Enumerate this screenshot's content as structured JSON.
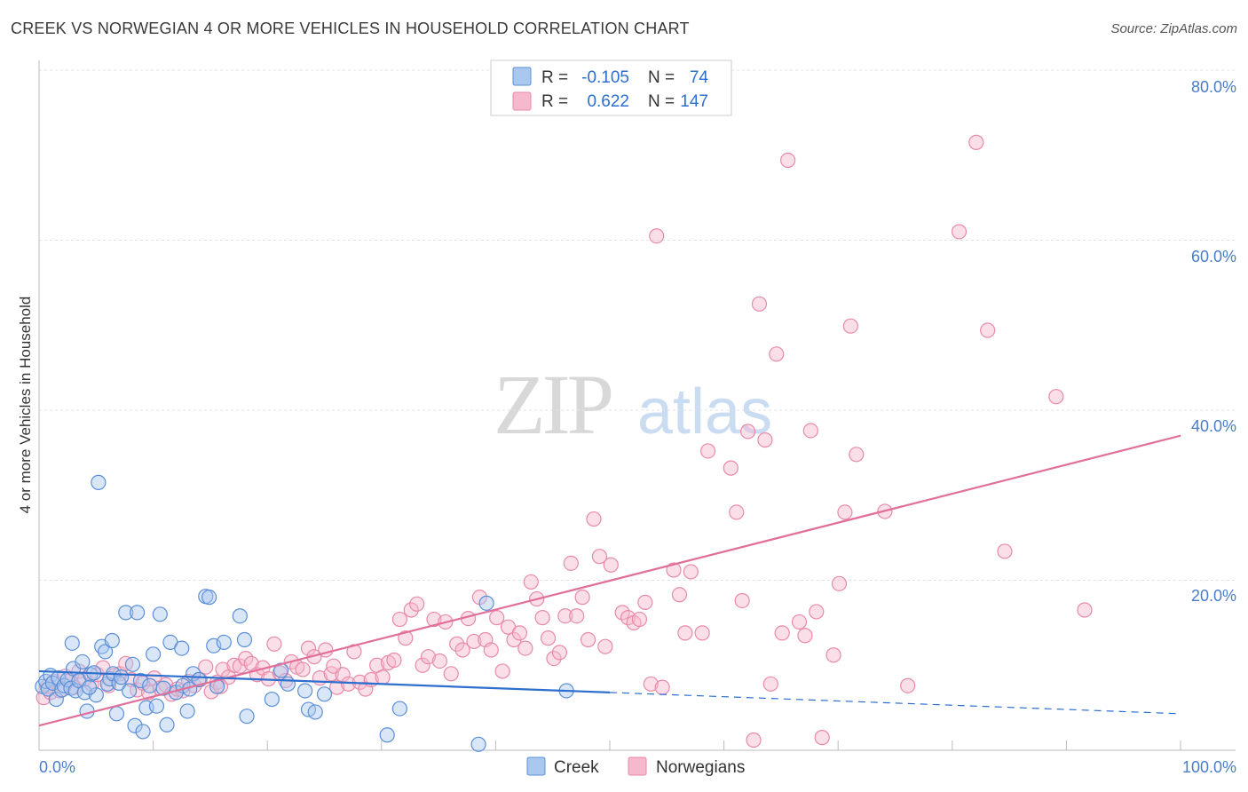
{
  "chart_data": {
    "type": "scatter",
    "title": "CREEK VS NORWEGIAN 4 OR MORE VEHICLES IN HOUSEHOLD CORRELATION CHART",
    "source": "Source: ZipAtlas.com",
    "xlabel": "",
    "ylabel": "4 or more Vehicles in Household",
    "xlim": [
      0,
      100
    ],
    "ylim": [
      0,
      80
    ],
    "x_tick_labels": [
      "0.0%",
      "100.0%"
    ],
    "y_tick_labels": [
      "80.0%",
      "60.0%",
      "40.0%",
      "20.0%"
    ],
    "y_tick_values": [
      80,
      60,
      40,
      20
    ],
    "watermark": {
      "zip": "ZIP",
      "atlas": "atlas"
    },
    "legend": {
      "rows": [
        {
          "r_label": "R =",
          "r_value": "-0.105",
          "n_label": "N =",
          "n_value": "74"
        },
        {
          "r_label": "R =",
          "r_value": "0.622",
          "n_label": "N =",
          "n_value": "147"
        }
      ]
    },
    "colors": {
      "creek_fill": "#a9c8f0",
      "creek_stroke": "#5b8fd6",
      "creek_line": "#2c6fcf",
      "norwegian_fill": "#f6b8cc",
      "norwegian_stroke": "#e88aa8",
      "norwegian_line": "#e0709a",
      "tick_text": "#4a7cc9",
      "legend_value": "#2c6fcf"
    },
    "series": [
      {
        "name": "Creek",
        "trend": {
          "x": [
            0,
            50
          ],
          "y": [
            9.3,
            6.8
          ],
          "dashed_to": [
            100,
            4.3
          ]
        },
        "points": [
          [
            0.3,
            7.5
          ],
          [
            0.6,
            8.1
          ],
          [
            0.8,
            7.2
          ],
          [
            1.0,
            8.8
          ],
          [
            1.2,
            7.9
          ],
          [
            1.5,
            6.0
          ],
          [
            1.7,
            8.5
          ],
          [
            2.0,
            7.1
          ],
          [
            2.2,
            7.6
          ],
          [
            2.5,
            8.3
          ],
          [
            2.8,
            7.3
          ],
          [
            3.0,
            9.6
          ],
          [
            3.2,
            7.0
          ],
          [
            3.5,
            8.2
          ],
          [
            3.8,
            10.4
          ],
          [
            4.0,
            6.8
          ],
          [
            4.2,
            4.6
          ],
          [
            4.5,
            8.9
          ],
          [
            4.8,
            9.1
          ],
          [
            5.0,
            6.5
          ],
          [
            5.2,
            31.5
          ],
          [
            5.5,
            12.2
          ],
          [
            5.8,
            11.6
          ],
          [
            6.0,
            7.8
          ],
          [
            6.2,
            8.4
          ],
          [
            6.5,
            9.0
          ],
          [
            6.8,
            4.3
          ],
          [
            7.0,
            7.9
          ],
          [
            7.2,
            8.6
          ],
          [
            7.6,
            16.2
          ],
          [
            7.9,
            7.0
          ],
          [
            8.2,
            10.1
          ],
          [
            8.4,
            2.9
          ],
          [
            8.6,
            16.2
          ],
          [
            8.9,
            8.2
          ],
          [
            9.1,
            2.2
          ],
          [
            9.4,
            5.0
          ],
          [
            9.7,
            7.6
          ],
          [
            10.0,
            11.3
          ],
          [
            10.3,
            5.2
          ],
          [
            10.6,
            16.0
          ],
          [
            10.9,
            7.3
          ],
          [
            11.2,
            3.0
          ],
          [
            11.5,
            12.7
          ],
          [
            12.0,
            6.8
          ],
          [
            12.6,
            7.6
          ],
          [
            13.0,
            4.6
          ],
          [
            13.5,
            9.0
          ],
          [
            14.0,
            8.3
          ],
          [
            14.6,
            18.1
          ],
          [
            14.9,
            18.0
          ],
          [
            15.3,
            12.3
          ],
          [
            15.6,
            7.5
          ],
          [
            16.2,
            12.7
          ],
          [
            17.6,
            15.8
          ],
          [
            18.0,
            13.0
          ],
          [
            18.2,
            4.0
          ],
          [
            20.4,
            6.0
          ],
          [
            21.2,
            9.4
          ],
          [
            21.8,
            7.8
          ],
          [
            23.3,
            7.0
          ],
          [
            23.6,
            4.8
          ],
          [
            24.2,
            4.5
          ],
          [
            25.0,
            6.6
          ],
          [
            30.5,
            1.8
          ],
          [
            31.6,
            4.9
          ],
          [
            38.5,
            0.7
          ],
          [
            39.2,
            17.3
          ],
          [
            46.2,
            7.0
          ],
          [
            12.5,
            12.0
          ],
          [
            13.2,
            7.2
          ],
          [
            2.9,
            12.6
          ],
          [
            4.4,
            7.4
          ],
          [
            6.4,
            12.9
          ]
        ]
      },
      {
        "name": "Norwegians",
        "trend": {
          "x": [
            0,
            100
          ],
          "y": [
            2.9,
            37.0
          ]
        },
        "points": [
          [
            0.4,
            6.2
          ],
          [
            0.7,
            7.5
          ],
          [
            1.0,
            6.8
          ],
          [
            1.3,
            8.1
          ],
          [
            1.8,
            7.0
          ],
          [
            2.3,
            8.7
          ],
          [
            2.7,
            8.2
          ],
          [
            3.1,
            7.4
          ],
          [
            3.5,
            9.3
          ],
          [
            4.0,
            8.4
          ],
          [
            4.6,
            7.8
          ],
          [
            5.1,
            8.9
          ],
          [
            5.6,
            9.7
          ],
          [
            6.1,
            7.6
          ],
          [
            6.6,
            8.8
          ],
          [
            7.1,
            9.0
          ],
          [
            7.6,
            10.2
          ],
          [
            8.1,
            8.3
          ],
          [
            8.6,
            7.1
          ],
          [
            9.1,
            7.9
          ],
          [
            9.6,
            6.8
          ],
          [
            10.1,
            8.5
          ],
          [
            10.6,
            7.3
          ],
          [
            11.1,
            7.7
          ],
          [
            11.6,
            6.6
          ],
          [
            12.1,
            7.2
          ],
          [
            12.6,
            7.0
          ],
          [
            13.1,
            8.1
          ],
          [
            13.6,
            7.6
          ],
          [
            14.1,
            8.3
          ],
          [
            14.6,
            9.8
          ],
          [
            15.1,
            6.9
          ],
          [
            15.6,
            8.0
          ],
          [
            16.1,
            9.5
          ],
          [
            16.6,
            8.6
          ],
          [
            17.1,
            10.0
          ],
          [
            17.6,
            9.9
          ],
          [
            18.1,
            10.8
          ],
          [
            18.6,
            10.2
          ],
          [
            19.1,
            8.9
          ],
          [
            19.6,
            9.7
          ],
          [
            20.1,
            8.4
          ],
          [
            20.6,
            12.5
          ],
          [
            21.1,
            9.1
          ],
          [
            21.6,
            8.2
          ],
          [
            22.1,
            10.4
          ],
          [
            22.6,
            9.8
          ],
          [
            23.1,
            9.5
          ],
          [
            23.6,
            12.0
          ],
          [
            24.1,
            11.0
          ],
          [
            24.6,
            8.5
          ],
          [
            25.1,
            11.8
          ],
          [
            25.6,
            9.0
          ],
          [
            26.1,
            7.4
          ],
          [
            26.6,
            8.9
          ],
          [
            27.1,
            7.8
          ],
          [
            27.6,
            11.6
          ],
          [
            28.1,
            8.0
          ],
          [
            28.6,
            7.2
          ],
          [
            29.1,
            8.3
          ],
          [
            29.6,
            10.0
          ],
          [
            30.1,
            8.6
          ],
          [
            30.6,
            10.3
          ],
          [
            31.1,
            10.6
          ],
          [
            31.6,
            15.4
          ],
          [
            32.1,
            13.2
          ],
          [
            32.6,
            16.5
          ],
          [
            33.1,
            17.2
          ],
          [
            33.6,
            10.0
          ],
          [
            34.1,
            11.0
          ],
          [
            34.6,
            15.4
          ],
          [
            35.1,
            10.5
          ],
          [
            35.6,
            15.1
          ],
          [
            36.1,
            9.0
          ],
          [
            36.6,
            12.5
          ],
          [
            37.1,
            11.8
          ],
          [
            37.6,
            15.5
          ],
          [
            38.1,
            12.8
          ],
          [
            38.6,
            18.0
          ],
          [
            39.1,
            13.0
          ],
          [
            39.6,
            11.8
          ],
          [
            40.1,
            15.6
          ],
          [
            40.6,
            9.3
          ],
          [
            41.1,
            14.5
          ],
          [
            41.6,
            13.0
          ],
          [
            42.1,
            13.8
          ],
          [
            42.6,
            12.0
          ],
          [
            43.1,
            19.8
          ],
          [
            43.6,
            17.8
          ],
          [
            44.1,
            15.6
          ],
          [
            44.6,
            13.2
          ],
          [
            45.1,
            10.8
          ],
          [
            45.6,
            11.5
          ],
          [
            46.1,
            15.8
          ],
          [
            46.6,
            22.0
          ],
          [
            47.1,
            15.8
          ],
          [
            47.6,
            18.0
          ],
          [
            48.1,
            13.0
          ],
          [
            48.6,
            27.2
          ],
          [
            49.1,
            22.8
          ],
          [
            49.6,
            12.2
          ],
          [
            50.1,
            21.8
          ],
          [
            51.1,
            16.2
          ],
          [
            51.6,
            15.6
          ],
          [
            52.1,
            15.0
          ],
          [
            52.6,
            15.4
          ],
          [
            53.1,
            17.4
          ],
          [
            53.6,
            7.8
          ],
          [
            54.1,
            60.5
          ],
          [
            54.6,
            7.4
          ],
          [
            55.6,
            21.2
          ],
          [
            56.1,
            18.3
          ],
          [
            56.6,
            13.8
          ],
          [
            57.1,
            21.0
          ],
          [
            58.1,
            13.8
          ],
          [
            58.6,
            35.2
          ],
          [
            60.6,
            33.2
          ],
          [
            61.1,
            28.0
          ],
          [
            61.6,
            17.6
          ],
          [
            62.1,
            37.5
          ],
          [
            62.6,
            1.2
          ],
          [
            63.1,
            52.5
          ],
          [
            63.6,
            36.5
          ],
          [
            64.1,
            7.8
          ],
          [
            64.6,
            46.6
          ],
          [
            65.1,
            13.8
          ],
          [
            65.6,
            69.4
          ],
          [
            66.6,
            15.1
          ],
          [
            67.1,
            13.5
          ],
          [
            67.6,
            37.6
          ],
          [
            68.1,
            16.3
          ],
          [
            68.6,
            1.5
          ],
          [
            69.6,
            11.2
          ],
          [
            70.1,
            19.6
          ],
          [
            70.6,
            28.0
          ],
          [
            71.1,
            49.9
          ],
          [
            71.6,
            34.8
          ],
          [
            74.1,
            28.1
          ],
          [
            76.1,
            7.6
          ],
          [
            80.6,
            61.0
          ],
          [
            82.1,
            71.5
          ],
          [
            83.1,
            49.4
          ],
          [
            84.6,
            23.4
          ],
          [
            89.1,
            41.6
          ],
          [
            91.6,
            16.5
          ],
          [
            15.9,
            7.5
          ],
          [
            25.8,
            9.9
          ]
        ]
      }
    ]
  },
  "bottom_legend": {
    "items": [
      "Creek",
      "Norwegians"
    ]
  }
}
